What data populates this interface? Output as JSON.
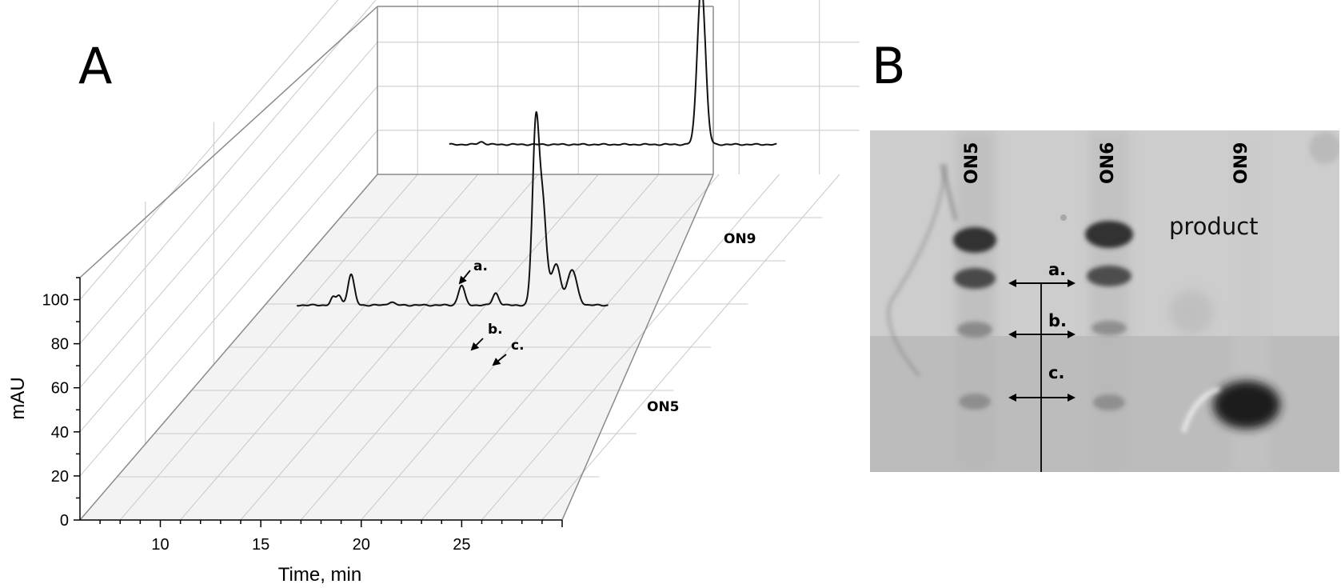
{
  "panel_a": {
    "letter": "A",
    "chart_data": {
      "type": "line",
      "xlabel": "Time, min",
      "ylabel": "mAU",
      "xlim": [
        6,
        30
      ],
      "ylim": [
        0,
        110
      ],
      "x_ticks": [
        "10",
        "15",
        "20",
        "25"
      ],
      "y_ticks": [
        "0",
        "20",
        "40",
        "60",
        "80",
        "100"
      ],
      "grid": true,
      "series": [
        {
          "name": "ON5",
          "baseline": 52,
          "noise": [
            [
              8,
              0.4
            ],
            [
              17,
              0.6
            ],
            [
              22.2,
              0.5
            ],
            [
              23.1,
              0.6
            ]
          ],
          "peaks": [
            {
              "x": 14.3,
              "height": 3.5,
              "width": 0.12
            },
            {
              "x": 14.6,
              "height": 4.5,
              "width": 0.12
            },
            {
              "x": 15.2,
              "height": 14,
              "width": 0.16
            },
            {
              "x": 17.2,
              "height": 1.5,
              "width": 0.15
            },
            {
              "x": 20.7,
              "height": 9,
              "width": 0.16
            },
            {
              "x": 22.4,
              "height": 5.5,
              "width": 0.15
            },
            {
              "x": 24.4,
              "height": 83,
              "width": 0.17
            },
            {
              "x": 24.75,
              "height": 38,
              "width": 0.16
            },
            {
              "x": 25.1,
              "height": 8,
              "width": 0.3
            },
            {
              "x": 25.45,
              "height": 14,
              "width": 0.2
            },
            {
              "x": 26.2,
              "height": 16,
              "width": 0.24
            }
          ],
          "annotations": [
            "a.",
            "b.",
            "c."
          ]
        },
        {
          "name": "ON9",
          "baseline": 52,
          "peaks": [
            {
              "x": 14.8,
              "height": 1.2,
              "width": 0.15
            },
            {
              "x": 25.75,
              "height": 73,
              "width": 0.2
            }
          ]
        }
      ]
    }
  },
  "panel_b": {
    "letter": "B",
    "lanes": [
      "ON5",
      "ON6",
      "ON9"
    ],
    "bands": [
      "a.",
      "b.",
      "c."
    ],
    "product_label": "product"
  }
}
